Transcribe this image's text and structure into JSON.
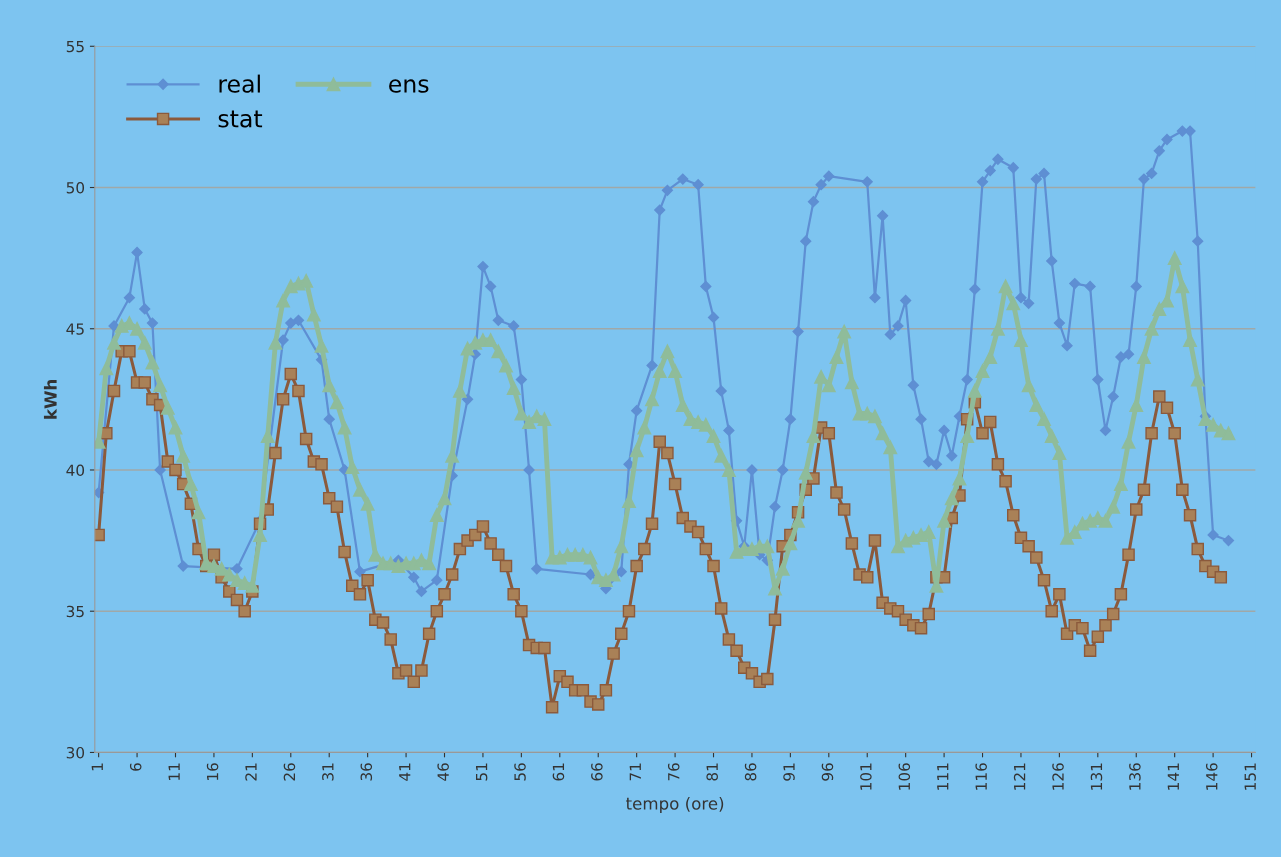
{
  "chart_data": {
    "type": "line",
    "xlabel": "tempo (ore)",
    "ylabel": "kWh",
    "xlim": [
      0.5,
      151.5
    ],
    "xticks": [
      1,
      6,
      11,
      16,
      21,
      26,
      31,
      36,
      41,
      46,
      51,
      56,
      61,
      66,
      71,
      76,
      81,
      86,
      91,
      96,
      101,
      106,
      111,
      116,
      121,
      126,
      131,
      136,
      141,
      146,
      151
    ],
    "ylim": [
      30,
      55
    ],
    "yticks": [
      30,
      35,
      40,
      45,
      50,
      55
    ],
    "grid": "y",
    "legend": "top left",
    "line_style": "solid",
    "series": [
      {
        "name": "real",
        "color": "#5e8fd3",
        "marker": "diamond",
        "x": [
          1,
          3,
          5,
          6,
          7,
          8,
          9,
          12,
          19,
          22,
          25,
          26,
          27,
          30,
          31,
          33,
          35,
          40,
          42,
          43,
          45,
          47,
          49,
          50,
          51,
          52,
          53,
          55,
          56,
          57,
          58,
          65,
          67,
          69,
          70,
          71,
          73,
          74,
          75,
          77,
          79,
          80,
          81,
          82,
          83,
          84,
          85,
          86,
          87,
          88,
          89,
          90,
          91,
          92,
          93,
          94,
          95,
          96,
          101,
          102,
          103,
          104,
          105,
          106,
          107,
          108,
          109,
          110,
          111,
          112,
          113,
          114,
          115,
          116,
          117,
          118,
          120,
          121,
          122,
          123,
          124,
          125,
          126,
          127,
          128,
          130,
          131,
          132,
          133,
          134,
          135,
          136,
          137,
          138,
          139,
          140,
          142,
          143,
          144,
          145,
          146,
          148
        ],
        "values": [
          39.2,
          45.1,
          46.1,
          47.7,
          45.7,
          45.2,
          40.0,
          36.6,
          36.5,
          38.2,
          44.6,
          45.2,
          45.3,
          43.9,
          41.8,
          40.0,
          36.4,
          36.8,
          36.2,
          35.7,
          36.1,
          39.8,
          42.5,
          44.1,
          47.2,
          46.5,
          45.3,
          45.1,
          43.2,
          40.0,
          36.5,
          36.3,
          35.8,
          36.4,
          40.2,
          42.1,
          43.7,
          49.2,
          49.9,
          50.3,
          50.1,
          46.5,
          45.4,
          42.8,
          41.4,
          38.2,
          37.3,
          40.0,
          37.0,
          36.8,
          38.7,
          40.0,
          41.8,
          44.9,
          48.1,
          49.5,
          50.1,
          50.4,
          50.2,
          46.1,
          49.0,
          44.8,
          45.1,
          46.0,
          43.0,
          41.8,
          40.3,
          40.2,
          41.4,
          40.5,
          41.9,
          43.2,
          46.4,
          50.2,
          50.6,
          51.0,
          50.7,
          46.1,
          45.9,
          50.3,
          50.5,
          47.4,
          45.2,
          44.4,
          46.6,
          46.5,
          43.2,
          41.4,
          42.6,
          44.0,
          44.1,
          46.5,
          50.3,
          50.5,
          51.3,
          51.7,
          52.0,
          52.0,
          48.1,
          41.9,
          37.7,
          37.5
        ]
      },
      {
        "name": "stat",
        "color": "#8b5a3c",
        "marker": "square",
        "x": [
          1,
          2,
          3,
          4,
          5,
          6,
          7,
          8,
          9,
          10,
          11,
          12,
          13,
          14,
          15,
          16,
          17,
          18,
          19,
          20,
          21,
          22,
          23,
          24,
          25,
          26,
          27,
          28,
          29,
          30,
          31,
          32,
          33,
          34,
          35,
          36,
          37,
          38,
          39,
          40,
          41,
          42,
          43,
          44,
          45,
          46,
          47,
          48,
          49,
          50,
          51,
          52,
          53,
          54,
          55,
          56,
          57,
          58,
          59,
          60,
          61,
          62,
          63,
          64,
          65,
          66,
          67,
          68,
          69,
          70,
          71,
          72,
          73,
          74,
          75,
          76,
          77,
          78,
          79,
          80,
          81,
          82,
          83,
          84,
          85,
          86,
          87,
          88,
          89,
          90,
          91,
          92,
          93,
          94,
          95,
          96,
          97,
          98,
          99,
          100,
          101,
          102,
          103,
          104,
          105,
          106,
          107,
          108,
          109,
          110,
          111,
          112,
          113,
          114,
          115,
          116,
          117,
          118,
          119,
          120,
          121,
          122,
          123,
          124,
          125,
          126,
          127,
          128,
          129,
          130,
          131,
          132,
          133,
          134,
          135,
          136,
          137,
          138,
          139,
          140,
          141,
          142,
          143,
          144,
          145,
          146,
          147
        ],
        "values": [
          37.7,
          41.3,
          42.8,
          44.2,
          44.2,
          43.1,
          43.1,
          42.5,
          42.3,
          40.3,
          40.0,
          39.5,
          38.8,
          37.2,
          36.6,
          37.0,
          36.2,
          35.7,
          35.4,
          35.0,
          35.7,
          38.1,
          38.6,
          40.6,
          42.5,
          43.4,
          42.8,
          41.1,
          40.3,
          40.2,
          39.0,
          38.7,
          37.1,
          35.9,
          35.6,
          36.1,
          34.7,
          34.6,
          34.0,
          32.8,
          32.9,
          32.5,
          32.9,
          34.2,
          35.0,
          35.6,
          36.3,
          37.2,
          37.5,
          37.7,
          38.0,
          37.4,
          37.0,
          36.6,
          35.6,
          35.0,
          33.8,
          33.7,
          33.7,
          31.6,
          32.7,
          32.5,
          32.2,
          32.2,
          31.8,
          31.7,
          32.2,
          33.5,
          34.2,
          35.0,
          36.6,
          37.2,
          38.1,
          41.0,
          40.6,
          39.5,
          38.3,
          38.0,
          37.8,
          37.2,
          36.6,
          35.1,
          34.0,
          33.6,
          33.0,
          32.8,
          32.5,
          32.6,
          34.7,
          37.3,
          37.7,
          38.5,
          39.3,
          39.7,
          41.5,
          41.3,
          39.2,
          38.6,
          37.4,
          36.3,
          36.2,
          37.5,
          35.3,
          35.1,
          35.0,
          34.7,
          34.5,
          34.4,
          34.9,
          36.2,
          36.2,
          38.3,
          39.1,
          41.8,
          42.4,
          41.3,
          41.7,
          40.2,
          39.6,
          38.4,
          37.6,
          37.3,
          36.9,
          36.1,
          35.0,
          35.6,
          34.2,
          34.5,
          34.4,
          33.6,
          34.1,
          34.5,
          34.9,
          35.6,
          37.0,
          38.6,
          39.3,
          41.3,
          42.6,
          42.2,
          41.3,
          39.3,
          38.4,
          37.2,
          36.6,
          36.4,
          36.2
        ]
      },
      {
        "name": "ens",
        "color": "#8fbc9a",
        "marker": "triangle",
        "x": [
          1,
          2,
          3,
          4,
          5,
          6,
          7,
          8,
          9,
          10,
          11,
          12,
          13,
          14,
          15,
          16,
          17,
          18,
          19,
          20,
          21,
          22,
          23,
          24,
          25,
          26,
          27,
          28,
          29,
          30,
          31,
          32,
          33,
          34,
          35,
          36,
          37,
          38,
          39,
          40,
          41,
          42,
          43,
          44,
          45,
          46,
          47,
          48,
          49,
          50,
          51,
          52,
          53,
          54,
          55,
          56,
          57,
          58,
          59,
          60,
          61,
          62,
          63,
          64,
          65,
          66,
          67,
          68,
          69,
          70,
          71,
          72,
          73,
          74,
          75,
          76,
          77,
          78,
          79,
          80,
          81,
          82,
          83,
          84,
          85,
          86,
          87,
          88,
          89,
          90,
          91,
          92,
          93,
          94,
          95,
          96,
          97,
          98,
          99,
          100,
          101,
          102,
          103,
          104,
          105,
          106,
          107,
          108,
          109,
          110,
          111,
          112,
          113,
          114,
          115,
          116,
          117,
          118,
          119,
          120,
          121,
          122,
          123,
          124,
          125,
          126,
          127,
          128,
          129,
          130,
          131,
          132,
          133,
          134,
          135,
          136,
          137,
          138,
          139,
          140,
          141,
          142,
          143,
          144,
          145,
          146,
          147,
          148
        ],
        "values": [
          41.0,
          43.6,
          44.5,
          45.1,
          45.2,
          45.0,
          44.5,
          43.8,
          43.0,
          42.2,
          41.5,
          40.5,
          39.5,
          38.5,
          36.7,
          36.6,
          36.5,
          36.3,
          36.1,
          36.0,
          35.9,
          37.7,
          41.2,
          44.5,
          46.0,
          46.5,
          46.6,
          46.7,
          45.5,
          44.4,
          43.0,
          42.4,
          41.5,
          40.1,
          39.3,
          38.8,
          37.0,
          36.7,
          36.7,
          36.6,
          36.7,
          36.7,
          36.8,
          36.7,
          38.4,
          39.0,
          40.5,
          42.8,
          44.3,
          44.5,
          44.6,
          44.6,
          44.2,
          43.7,
          42.9,
          42.0,
          41.7,
          41.9,
          41.8,
          36.9,
          36.9,
          37.0,
          37.0,
          37.0,
          36.9,
          36.2,
          36.1,
          36.3,
          37.3,
          38.9,
          40.7,
          41.5,
          42.5,
          43.5,
          44.2,
          43.5,
          42.3,
          41.8,
          41.7,
          41.6,
          41.2,
          40.5,
          40.0,
          37.1,
          37.2,
          37.2,
          37.3,
          37.3,
          35.8,
          36.5,
          37.4,
          38.2,
          39.9,
          41.2,
          43.3,
          43.0,
          44.0,
          44.9,
          43.1,
          42.0,
          42.0,
          41.9,
          41.3,
          40.8,
          37.3,
          37.5,
          37.6,
          37.7,
          37.8,
          35.9,
          38.2,
          39.0,
          39.7,
          41.2,
          42.8,
          43.5,
          44.0,
          45.0,
          46.5,
          45.9,
          44.6,
          43.0,
          42.3,
          41.8,
          41.2,
          40.6,
          37.6,
          37.8,
          38.1,
          38.2,
          38.3,
          38.2,
          38.7,
          39.5,
          41.0,
          42.3,
          44.0,
          45.0,
          45.7,
          46.0,
          47.5,
          46.5,
          44.6,
          43.2,
          41.8,
          41.6,
          41.4,
          41.3
        ]
      }
    ]
  }
}
